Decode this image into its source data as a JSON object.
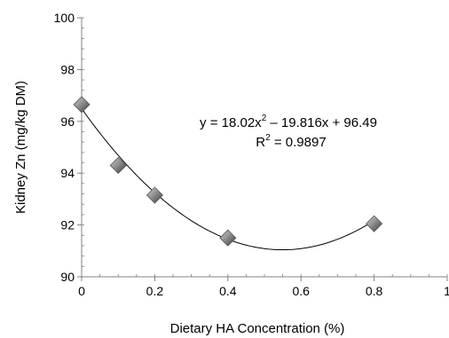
{
  "chart_data": {
    "type": "scatter",
    "title": "",
    "xlabel": "Dietary HA Concentration (%)",
    "ylabel": "Kidney Zn (mg/kg DM)",
    "xlim": [
      0,
      1
    ],
    "ylim": [
      90,
      100
    ],
    "xticks": [
      "0",
      "0.2",
      "0.4",
      "0.6",
      "0.8",
      "1"
    ],
    "yticks": [
      "90",
      "92",
      "94",
      "96",
      "98",
      "100"
    ],
    "grid": false,
    "points": [
      {
        "x": 0.0,
        "y": 96.65
      },
      {
        "x": 0.1,
        "y": 94.3
      },
      {
        "x": 0.2,
        "y": 93.15
      },
      {
        "x": 0.4,
        "y": 91.5
      },
      {
        "x": 0.8,
        "y": 92.05
      }
    ],
    "trendline": {
      "a": 18.02,
      "b": -19.816,
      "c": 96.49,
      "x_range": [
        0,
        0.8
      ]
    },
    "equation": {
      "prefix": "y = 18.02x",
      "exponent": "2",
      "suffix": " – 19.816x + 96.49",
      "r2_prefix": "R",
      "r2_exponent": "2",
      "r2_suffix": " = 0.9897"
    },
    "colors": {
      "marker_light": "#d0d0d0",
      "marker_dark": "#3a3a3a",
      "line": "#000000"
    }
  }
}
